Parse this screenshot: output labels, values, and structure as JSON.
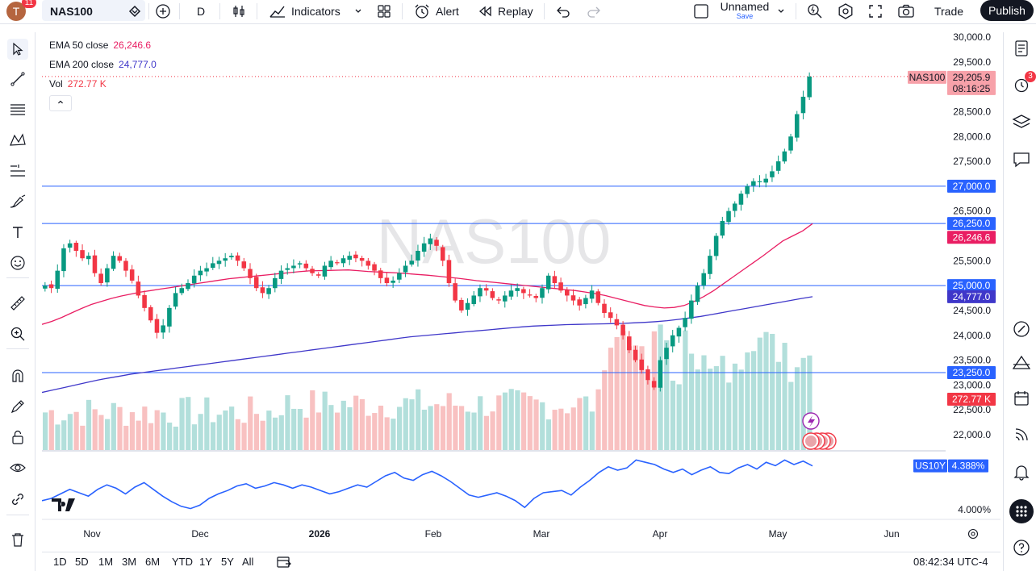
{
  "topbar": {
    "avatar_letter": "T",
    "notifications": "11",
    "symbol": "NAS100",
    "interval": "D",
    "indicators_label": "Indicators",
    "alert_label": "Alert",
    "replay_label": "Replay",
    "layout_name": "Unnamed",
    "save_label": "Save",
    "trade_label": "Trade",
    "publish_label": "Publish"
  },
  "legend": {
    "ema50_label": "EMA 50 close",
    "ema50_value": "26,246.6",
    "ema200_label": "EMA 200 close",
    "ema200_value": "24,777.0",
    "vol_label": "Vol",
    "vol_value": "272.77 K",
    "collapse_glyph": "⌃"
  },
  "watermark": "NAS100",
  "price_axis": {
    "ticks": [
      "30,000.0",
      "29,500.0",
      "28,500.0",
      "28,000.0",
      "27,500.0",
      "26,500.0",
      "25,500.0",
      "24,500.0",
      "24,000.0",
      "23,500.0",
      "23,000.0",
      "22,500.0",
      "22,000.0"
    ]
  },
  "price_tags": {
    "symbol_tag": "NAS100",
    "last_price": "29,205.9",
    "countdown": "08:16:25",
    "level_27000": "27,000.0",
    "level_26250": "26,250.0",
    "ema50": "26,246.6",
    "level_25000": "25,000.0",
    "ema200": "24,777.0",
    "level_23250": "23,250.0",
    "volume": "272.77 K"
  },
  "sub_pane": {
    "symbol": "US10Y",
    "value": "4.388%",
    "axis_tick": "4.000%"
  },
  "time_axis": {
    "labels": [
      "Nov",
      "Dec",
      "2026",
      "Feb",
      "Mar",
      "Apr",
      "May",
      "Jun"
    ]
  },
  "bottom": {
    "ranges": [
      "1D",
      "5D",
      "1M",
      "3M",
      "6M",
      "YTD",
      "1Y",
      "5Y",
      "All"
    ],
    "clock": "08:42:34 UTC-4"
  },
  "right_toolbar": {
    "alerts_badge": "3"
  },
  "colors": {
    "up": "#089981",
    "down": "#f23645",
    "ema50": "#e91e63",
    "ema200": "#3f37c9",
    "hline": "#2962ff",
    "us10y": "#2962ff",
    "vol_up": "#b2dfdb",
    "vol_down": "#f8c1c1"
  },
  "chart_data": {
    "type": "candlestick",
    "symbol": "NAS100",
    "interval": "D",
    "ylim": [
      21800,
      30100
    ],
    "horizontal_levels": [
      27000,
      26250,
      25000,
      23250
    ],
    "ema50_last": 26246.6,
    "ema200_last": 24777.0,
    "last_price": 29205.9,
    "x": [
      "Nov",
      "Dec",
      "2026",
      "Feb",
      "Mar",
      "Apr",
      "May",
      "Jun"
    ],
    "close_path": [
      25000,
      24950,
      25300,
      25750,
      25850,
      25700,
      25550,
      25600,
      25250,
      25050,
      25350,
      25600,
      25500,
      25300,
      25100,
      24800,
      24550,
      24300,
      24050,
      24200,
      24550,
      24850,
      24950,
      25050,
      25200,
      25300,
      25350,
      25450,
      25500,
      25550,
      25600,
      25500,
      25350,
      25150,
      24950,
      24850,
      24950,
      25150,
      25300,
      25350,
      25400,
      25450,
      25350,
      25250,
      25200,
      25400,
      25500,
      25450,
      25550,
      25600,
      25550,
      25500,
      25400,
      25300,
      25150,
      25050,
      25100,
      25250,
      25400,
      25500,
      25700,
      25850,
      25950,
      25800,
      25500,
      25050,
      24700,
      24500,
      24650,
      24800,
      24950,
      24900,
      24750,
      24700,
      24800,
      24900,
      24950,
      24850,
      24800,
      24750,
      24950,
      25200,
      25050,
      24900,
      24800,
      24700,
      24600,
      24750,
      24900,
      24650,
      24450,
      24350,
      24200,
      24000,
      23700,
      23500,
      23300,
      23100,
      22950,
      23500,
      23750,
      24000,
      24150,
      24350,
      24700,
      25000,
      25250,
      25600,
      26000,
      26300,
      26500,
      26650,
      26850,
      27000,
      27100,
      27100,
      27150,
      27300,
      27500,
      27700,
      28000,
      28450,
      28800,
      29205.9
    ],
    "ema50_path": [
      24220,
      24280,
      24360,
      24450,
      24540,
      24620,
      24680,
      24740,
      24790,
      24830,
      24870,
      24900,
      24930,
      24960,
      24990,
      25020,
      25050,
      25080,
      25110,
      25140,
      25160,
      25180,
      25200,
      25220,
      25240,
      25260,
      25280,
      25295,
      25300,
      25305,
      25310,
      25315,
      25300,
      25285,
      25275,
      25265,
      25255,
      25240,
      25225,
      25210,
      25190,
      25170,
      25150,
      25125,
      25100,
      25080,
      25060,
      25040,
      25020,
      25000,
      24980,
      24960,
      24940,
      24920,
      24900,
      24870,
      24840,
      24800,
      24750,
      24700,
      24650,
      24600,
      24570,
      24550,
      24560,
      24600,
      24680,
      24780,
      24900,
      25040,
      25180,
      25320,
      25460,
      25600,
      25750,
      25900,
      26000,
      26100,
      26246.6
    ],
    "ema200_path": [
      22850,
      22900,
      22950,
      23000,
      23050,
      23100,
      23140,
      23180,
      23220,
      23250,
      23280,
      23310,
      23340,
      23370,
      23400,
      23430,
      23460,
      23490,
      23520,
      23550,
      23580,
      23610,
      23640,
      23670,
      23700,
      23730,
      23760,
      23790,
      23820,
      23850,
      23880,
      23910,
      23940,
      23970,
      23990,
      24010,
      24030,
      24050,
      24070,
      24090,
      24110,
      24130,
      24150,
      24170,
      24185,
      24195,
      24205,
      24215,
      24220,
      24225,
      24230,
      24235,
      24240,
      24250,
      24260,
      24275,
      24295,
      24320,
      24350,
      24380,
      24420,
      24460,
      24500,
      24540,
      24580,
      24620,
      24660,
      24700,
      24740,
      24777
    ],
    "us10y_path": [
      4.08,
      4.1,
      4.14,
      4.18,
      4.15,
      4.12,
      4.18,
      4.22,
      4.19,
      4.14,
      4.2,
      4.24,
      4.18,
      4.12,
      4.07,
      4.03,
      4.01,
      4.04,
      4.1,
      4.14,
      4.17,
      4.21,
      4.23,
      4.19,
      4.21,
      4.24,
      4.22,
      4.19,
      4.22,
      4.2,
      4.17,
      4.14,
      4.16,
      4.19,
      4.22,
      4.2,
      4.25,
      4.3,
      4.33,
      4.28,
      4.26,
      4.31,
      4.34,
      4.3,
      4.25,
      4.19,
      4.13,
      4.11,
      4.13,
      4.15,
      4.12,
      4.08,
      4.02,
      4.1,
      4.15,
      4.16,
      4.17,
      4.13,
      4.2,
      4.26,
      4.33,
      4.38,
      4.35,
      4.37,
      4.44,
      4.42,
      4.4,
      4.36,
      4.33,
      4.36,
      4.31,
      4.35,
      4.38,
      4.33,
      4.32,
      4.37,
      4.4,
      4.36,
      4.42,
      4.39,
      4.44,
      4.4,
      4.43,
      4.388
    ]
  }
}
